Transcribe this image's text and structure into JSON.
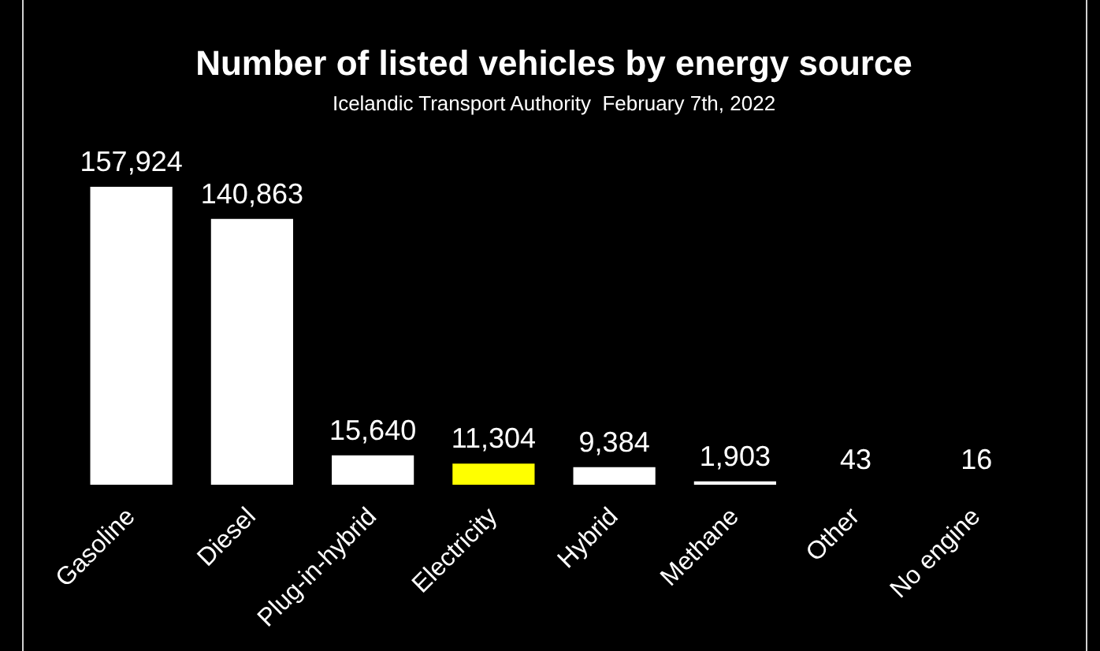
{
  "chart_data": {
    "type": "bar",
    "title": "Number of listed vehicles by energy source",
    "subtitle": "Icelandic Transport Authority  February 7th, 2022",
    "categories": [
      "Gasoline",
      "Diesel",
      "Plug-in-hybrid",
      "Electricity",
      "Hybrid",
      "Methane",
      "Other",
      "No engine"
    ],
    "values": [
      157924,
      140863,
      15640,
      11304,
      9384,
      1903,
      43,
      16
    ],
    "colors": [
      "#ffffff",
      "#ffffff",
      "#ffffff",
      "#ffff00",
      "#ffffff",
      "#ffffff",
      "#ffffff",
      "#ffffff"
    ],
    "value_labels": [
      "157,924",
      "140,863",
      "15,640",
      "11,304",
      "9,384",
      "1,903",
      "43",
      "16"
    ],
    "legend": false
  }
}
